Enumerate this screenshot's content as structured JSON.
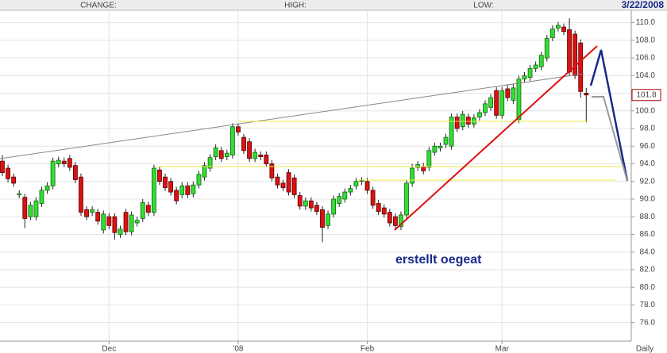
{
  "header": {
    "change": "CHANGE:",
    "high": "HIGH:",
    "low": "LOW:",
    "date": "3/22/2008"
  },
  "chart_data": {
    "type": "candlestick",
    "annotation": "erstellt oegeat",
    "interval": "Daily",
    "last_price": 101.8,
    "colors": {
      "up": "#33dd33",
      "down": "#dd1111"
    },
    "grid": true,
    "ylim": [
      73.9,
      111.4
    ],
    "yticks": [
      {
        "value": 76,
        "label": "76.0"
      },
      {
        "value": 78,
        "label": "78.0"
      },
      {
        "value": 80,
        "label": "80.0"
      },
      {
        "value": 82,
        "label": "82.0"
      },
      {
        "value": 84,
        "label": "84.0"
      },
      {
        "value": 86,
        "label": "86.0"
      },
      {
        "value": 88,
        "label": "88.0"
      },
      {
        "value": 90,
        "label": "90.0"
      },
      {
        "value": 92,
        "label": "92.0"
      },
      {
        "value": 94,
        "label": "94.0"
      },
      {
        "value": 96,
        "label": "96.0"
      },
      {
        "value": 98,
        "label": "98.0"
      },
      {
        "value": 100,
        "label": "100.0"
      },
      {
        "value": 102,
        "label": "102.0"
      },
      {
        "value": 104,
        "label": "104.0"
      },
      {
        "value": 106,
        "label": "106.0"
      },
      {
        "value": 108,
        "label": "108.0"
      },
      {
        "value": 110,
        "label": "110.0"
      }
    ],
    "categories": [
      null,
      null,
      null,
      null,
      null,
      null,
      null,
      null,
      null,
      null,
      null,
      null,
      null,
      null,
      null,
      null,
      null,
      null,
      null,
      "Dec",
      null,
      null,
      null,
      null,
      null,
      null,
      null,
      null,
      null,
      null,
      null,
      null,
      null,
      null,
      null,
      null,
      null,
      null,
      null,
      null,
      null,
      null,
      "'08",
      null,
      null,
      null,
      null,
      null,
      null,
      null,
      null,
      null,
      null,
      null,
      null,
      null,
      null,
      null,
      null,
      null,
      null,
      null,
      null,
      null,
      null,
      "Feb",
      null,
      null,
      null,
      null,
      null,
      null,
      null,
      null,
      null,
      null,
      null,
      null,
      null,
      null,
      null,
      null,
      null,
      null,
      null,
      null,
      null,
      null,
      null,
      "Mar",
      null,
      null,
      null,
      null,
      null,
      null,
      null,
      null,
      null,
      null,
      null,
      null,
      null,
      null,
      null
    ],
    "open": [
      94.3,
      93.5,
      92.5,
      90.5,
      90.2,
      88.0,
      88.0,
      89.5,
      91.0,
      91.5,
      94.0,
      94.3,
      94.6,
      93.8,
      92.5,
      88.8,
      88.5,
      88.5,
      86.5,
      88.0,
      88.0,
      86.0,
      88.5,
      86.3,
      87.3,
      87.8,
      89.3,
      88.5,
      93.3,
      92.5,
      92.0,
      91.0,
      90.5,
      91.5,
      90.6,
      91.6,
      92.5,
      93.5,
      94.8,
      95.5,
      94.8,
      95.0,
      98.2,
      97.0,
      96.5,
      94.6,
      95.0,
      95.0,
      94.0,
      92.5,
      91.8,
      93.0,
      92.4,
      90.4,
      89.2,
      89.8,
      89.3,
      88.8,
      87.0,
      88.3,
      89.5,
      90.0,
      90.8,
      91.5,
      92.0,
      92.0,
      91.0,
      89.5,
      89.0,
      88.5,
      88.0,
      86.9,
      88.2,
      91.8,
      93.6,
      93.7,
      93.6,
      95.3,
      95.8,
      96.2,
      96.0,
      99.3,
      98.2,
      99.3,
      98.5,
      99.3,
      99.8,
      100.4,
      102.3,
      99.5,
      102.5,
      101.2,
      99.0,
      103.6,
      103.8,
      104.8,
      105.0,
      106.0,
      108.3,
      109.4,
      109.5,
      109.2,
      108.7,
      107.7,
      102.0
    ],
    "high": [
      95.0,
      93.9,
      92.9,
      91.0,
      90.6,
      89.7,
      90.2,
      91.4,
      91.9,
      94.7,
      94.8,
      94.7,
      95.0,
      94.2,
      92.9,
      89.2,
      89.2,
      88.9,
      88.7,
      88.4,
      88.4,
      87.0,
      88.9,
      88.6,
      88.0,
      90.0,
      89.7,
      93.9,
      93.7,
      92.9,
      92.4,
      91.4,
      91.9,
      91.9,
      92.0,
      93.2,
      94.2,
      95.1,
      96.2,
      95.9,
      95.6,
      98.6,
      98.6,
      97.4,
      96.9,
      95.7,
      95.4,
      95.4,
      94.4,
      92.9,
      92.2,
      93.4,
      92.8,
      90.8,
      90.2,
      90.2,
      89.7,
      89.2,
      88.7,
      90.4,
      90.7,
      91.2,
      91.6,
      92.4,
      92.5,
      92.4,
      91.4,
      89.9,
      89.4,
      88.9,
      88.4,
      88.6,
      92.2,
      94.0,
      94.3,
      94.1,
      95.9,
      96.4,
      96.4,
      97.4,
      99.7,
      99.7,
      100.0,
      99.7,
      99.6,
      100.2,
      101.2,
      101.9,
      102.7,
      102.7,
      102.9,
      103.0,
      104.0,
      104.4,
      105.2,
      105.6,
      106.7,
      108.6,
      109.7,
      110.1,
      109.9,
      110.5,
      109.1,
      108.1,
      102.6
    ],
    "low": [
      92.6,
      91.9,
      91.4,
      90.1,
      86.7,
      87.6,
      87.6,
      89.1,
      90.6,
      91.1,
      93.6,
      93.6,
      93.2,
      91.8,
      88.1,
      87.6,
      88.1,
      87.1,
      86.1,
      86.6,
      85.4,
      85.6,
      85.9,
      85.9,
      86.9,
      87.4,
      88.1,
      88.1,
      91.6,
      90.9,
      90.4,
      89.4,
      90.1,
      90.1,
      90.2,
      91.2,
      92.1,
      93.1,
      94.4,
      94.2,
      94.4,
      94.6,
      97.2,
      95.1,
      94.2,
      94.2,
      94.4,
      93.6,
      92.0,
      91.2,
      90.9,
      90.4,
      90.1,
      88.8,
      88.8,
      88.6,
      88.2,
      85.1,
      86.6,
      87.9,
      89.1,
      89.6,
      90.4,
      91.1,
      91.6,
      90.6,
      88.9,
      88.2,
      87.9,
      86.9,
      86.6,
      86.5,
      87.8,
      91.4,
      93.2,
      92.8,
      93.2,
      94.9,
      95.4,
      95.8,
      95.6,
      97.6,
      97.8,
      98.1,
      98.1,
      98.9,
      99.4,
      100.0,
      99.1,
      99.1,
      101.1,
      100.8,
      98.6,
      103.2,
      103.4,
      104.4,
      104.6,
      105.6,
      107.9,
      109.0,
      108.6,
      104.0,
      103.6,
      101.5,
      98.7
    ],
    "close": [
      93.0,
      92.3,
      91.8,
      90.6,
      87.8,
      89.3,
      89.8,
      91.0,
      91.5,
      94.3,
      94.4,
      94.0,
      93.6,
      92.2,
      88.5,
      88.0,
      88.8,
      87.5,
      88.3,
      87.0,
      86.2,
      86.6,
      86.3,
      88.2,
      87.6,
      89.6,
      88.5,
      93.5,
      92.0,
      91.3,
      90.8,
      89.8,
      91.5,
      90.5,
      91.6,
      92.8,
      93.8,
      94.7,
      95.8,
      94.6,
      95.2,
      98.2,
      97.6,
      95.5,
      94.6,
      95.3,
      94.8,
      94.0,
      92.4,
      91.6,
      91.3,
      90.8,
      90.5,
      89.2,
      89.8,
      89.0,
      88.6,
      86.8,
      88.3,
      90.0,
      90.3,
      90.8,
      91.2,
      92.0,
      92.1,
      91.0,
      89.3,
      88.6,
      88.3,
      87.3,
      87.0,
      88.2,
      91.8,
      93.5,
      93.9,
      93.2,
      95.5,
      96.0,
      96.0,
      97.0,
      99.3,
      98.0,
      99.6,
      98.5,
      99.2,
      99.8,
      100.8,
      101.5,
      99.5,
      102.3,
      101.5,
      102.6,
      103.6,
      104.0,
      104.8,
      105.2,
      106.3,
      108.2,
      109.3,
      109.7,
      109.0,
      104.4,
      104.0,
      102.2,
      101.8
    ]
  }
}
